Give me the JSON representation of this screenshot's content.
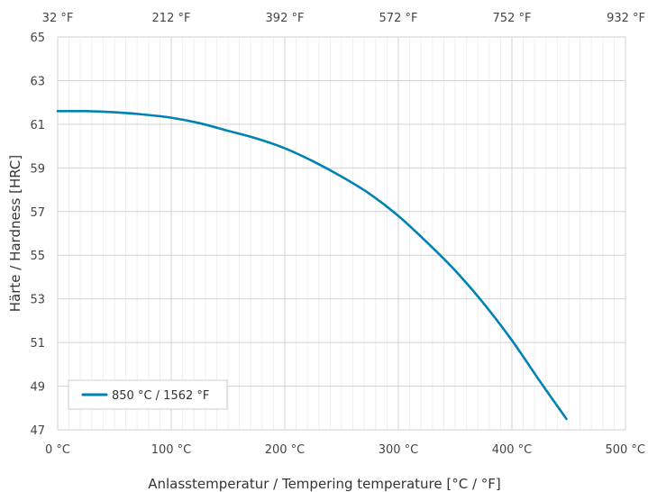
{
  "chart_data": {
    "type": "line",
    "xlabel": "Anlasstemperatur / Tempering temperature [°C / °F]",
    "ylabel": "Härte / Hardness [HRC]",
    "xlim": [
      0,
      500
    ],
    "ylim": [
      47,
      65
    ],
    "x_ticks": [
      "0 °C",
      "100 °C",
      "200 °C",
      "300 °C",
      "400 °C",
      "500 °C"
    ],
    "x_top_ticks": [
      "32 °F",
      "212 °F",
      "392 °F",
      "572 °F",
      "752 °F",
      "932 °F"
    ],
    "y_ticks": [
      "47",
      "49",
      "51",
      "53",
      "55",
      "57",
      "59",
      "61",
      "63",
      "65"
    ],
    "grid": true,
    "legend_position": "bottom-left",
    "series": [
      {
        "name": "850 °C / 1562 °F",
        "color": "#0083b3",
        "x": [
          0,
          25,
          50,
          75,
          100,
          125,
          150,
          175,
          200,
          225,
          250,
          275,
          300,
          325,
          350,
          375,
          400,
          425,
          448
        ],
        "y": [
          61.6,
          61.6,
          61.55,
          61.45,
          61.3,
          61.05,
          60.7,
          60.35,
          59.9,
          59.3,
          58.6,
          57.8,
          56.8,
          55.6,
          54.3,
          52.8,
          51.1,
          49.2,
          47.5
        ]
      }
    ]
  }
}
